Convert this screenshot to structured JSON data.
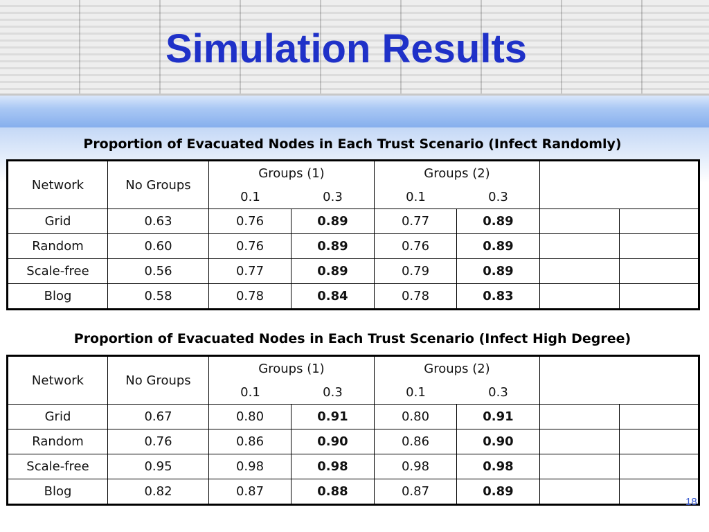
{
  "slide": {
    "title": "Simulation Results",
    "page_number": "18",
    "colors": {
      "title": "#1f31c8",
      "band": "#86afed",
      "page_number": "#3a5bd0"
    }
  },
  "tables": [
    {
      "caption": "Proportion of Evacuated Nodes in Each Trust Scenario (Infect Randomly)",
      "headers": {
        "network": "Network",
        "no_groups": "No Groups",
        "groups1": "Groups (1)",
        "groups2": "Groups (2)",
        "g1_low": "0.1",
        "g1_high": "0.3",
        "g2_low": "0.1",
        "g2_high": "0.3"
      },
      "rows": [
        {
          "network": "Grid",
          "no_groups": "0.63",
          "g1_low": "0.76",
          "g1_high": "0.89",
          "g2_low": "0.77",
          "g2_high": "0.89"
        },
        {
          "network": "Random",
          "no_groups": "0.60",
          "g1_low": "0.76",
          "g1_high": "0.89",
          "g2_low": "0.76",
          "g2_high": "0.89"
        },
        {
          "network": "Scale-free",
          "no_groups": "0.56",
          "g1_low": "0.77",
          "g1_high": "0.89",
          "g2_low": "0.79",
          "g2_high": "0.89"
        },
        {
          "network": "Blog",
          "no_groups": "0.58",
          "g1_low": "0.78",
          "g1_high": "0.84",
          "g2_low": "0.78",
          "g2_high": "0.83"
        }
      ]
    },
    {
      "caption": "Proportion of Evacuated Nodes in Each Trust Scenario (Infect High Degree)",
      "headers": {
        "network": "Network",
        "no_groups": "No Groups",
        "groups1": "Groups (1)",
        "groups2": "Groups (2)",
        "g1_low": "0.1",
        "g1_high": "0.3",
        "g2_low": "0.1",
        "g2_high": "0.3"
      },
      "rows": [
        {
          "network": "Grid",
          "no_groups": "0.67",
          "g1_low": "0.80",
          "g1_high": "0.91",
          "g2_low": "0.80",
          "g2_high": "0.91"
        },
        {
          "network": "Random",
          "no_groups": "0.76",
          "g1_low": "0.86",
          "g1_high": "0.90",
          "g2_low": "0.86",
          "g2_high": "0.90"
        },
        {
          "network": "Scale-free",
          "no_groups": "0.95",
          "g1_low": "0.98",
          "g1_high": "0.98",
          "g2_low": "0.98",
          "g2_high": "0.98"
        },
        {
          "network": "Blog",
          "no_groups": "0.82",
          "g1_low": "0.87",
          "g1_high": "0.88",
          "g2_low": "0.87",
          "g2_high": "0.89"
        }
      ]
    }
  ]
}
